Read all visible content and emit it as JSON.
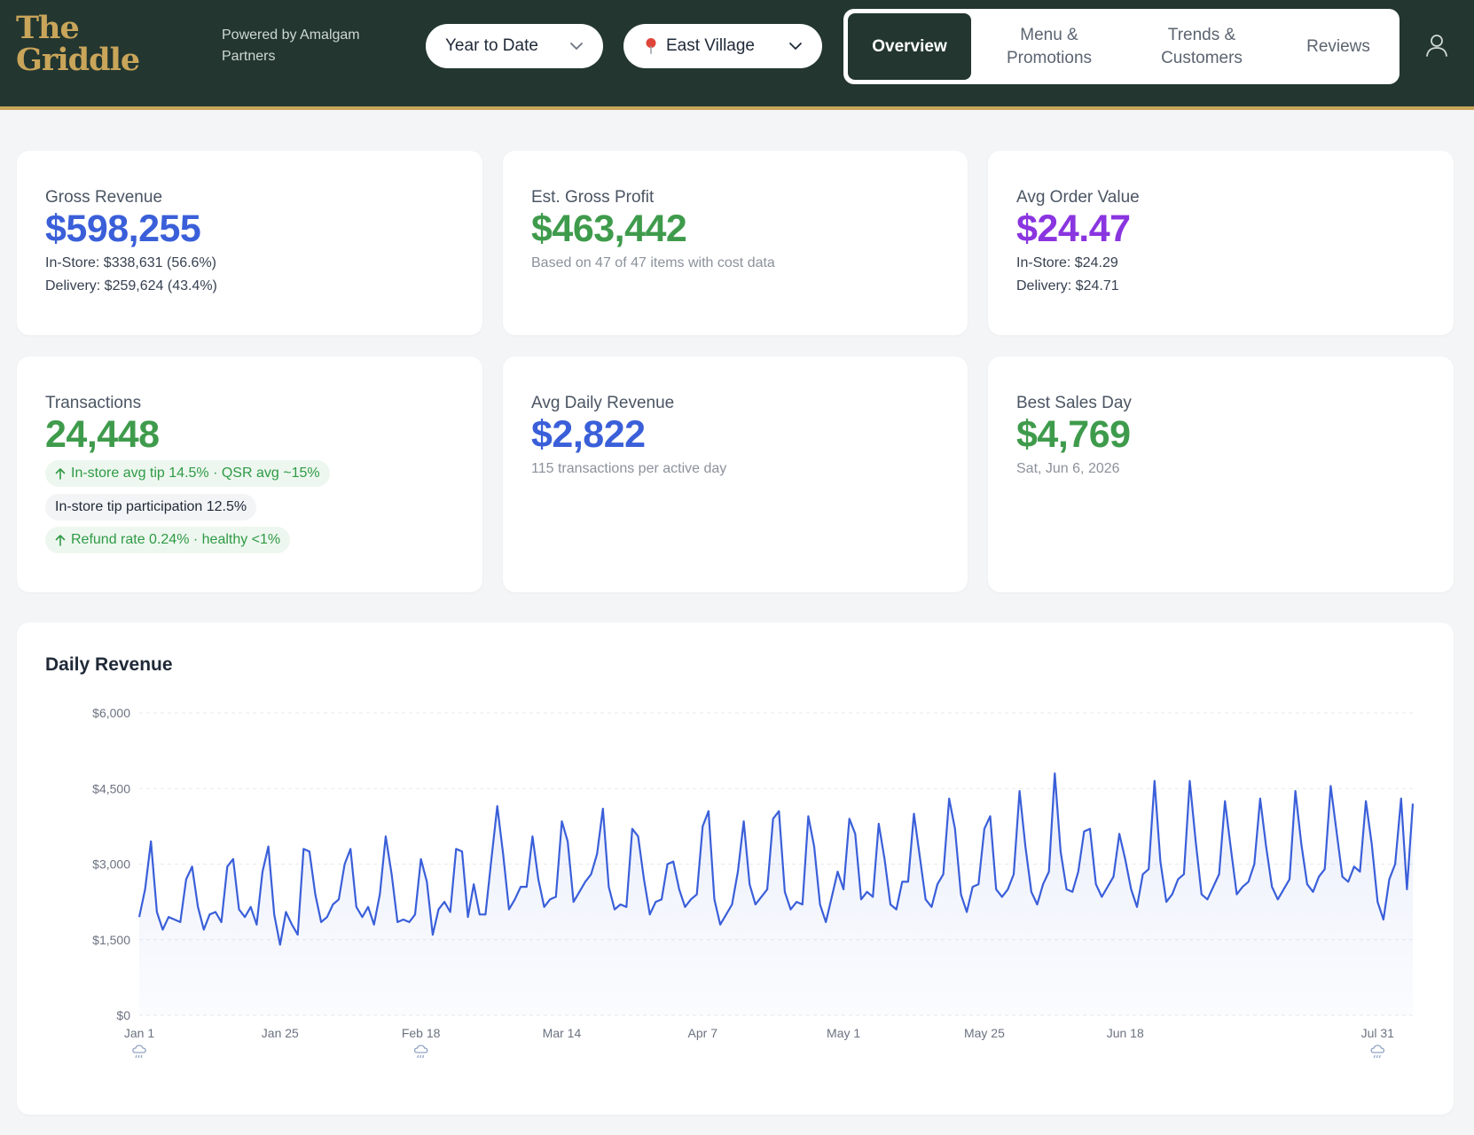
{
  "header": {
    "logo_line1": "The",
    "logo_line2": "Griddle",
    "powered_by": "Powered by Amalgam Partners",
    "period_select": {
      "value": "Year to Date",
      "icon": "chevron-down-icon"
    },
    "location_select": {
      "value": "East Village",
      "icon": "map-pin-icon"
    },
    "tabs": [
      {
        "label": "Overview",
        "active": true
      },
      {
        "label": "Menu & Promotions",
        "active": false
      },
      {
        "label": "Trends & Customers",
        "active": false
      },
      {
        "label": "Reviews",
        "active": false
      }
    ],
    "user_icon": "user-icon"
  },
  "cards": {
    "gross_revenue": {
      "label": "Gross Revenue",
      "value": "$598,255",
      "in_store": "In-Store: $338,631 (56.6%)",
      "delivery": "Delivery: $259,624 (43.4%)"
    },
    "gross_profit": {
      "label": "Est. Gross Profit",
      "value": "$463,442",
      "note": "Based on 47 of 47 items with cost data"
    },
    "avg_order": {
      "label": "Avg Order Value",
      "value": "$24.47",
      "in_store": "In-Store: $24.29",
      "delivery": "Delivery: $24.71"
    },
    "transactions": {
      "label": "Transactions",
      "value": "24,448",
      "pill_tip": "In-store avg tip 14.5% · QSR avg ~15%",
      "pill_participation": "In-store tip participation 12.5%",
      "pill_refund": "Refund rate 0.24% · healthy <1%"
    },
    "avg_daily": {
      "label": "Avg Daily Revenue",
      "value": "$2,822",
      "note": "115 transactions per active day"
    },
    "best_day": {
      "label": "Best Sales Day",
      "value": "$4,769",
      "note": "Sat, Jun 6, 2026"
    }
  },
  "colors": {
    "header_bg": "#233630",
    "accent_gold": "#c9a55a",
    "blue": "#3a5fd9",
    "green": "#3f9b4c",
    "purple": "#8a35e0",
    "line": "#3a5fd9"
  },
  "chart_data": {
    "type": "area",
    "title": "Daily Revenue",
    "ylim": [
      0,
      6000
    ],
    "yticks": [
      "$0",
      "$1,500",
      "$3,000",
      "$4,500",
      "$6,000"
    ],
    "xticks": [
      {
        "label": "Jan 1",
        "day": 0,
        "weather_icon": "snow-cloud-icon"
      },
      {
        "label": "Jan 25",
        "day": 24
      },
      {
        "label": "Feb 18",
        "day": 48,
        "weather_icon": "snow-cloud-icon"
      },
      {
        "label": "Mar 14",
        "day": 72
      },
      {
        "label": "Apr 7",
        "day": 96
      },
      {
        "label": "May 1",
        "day": 120
      },
      {
        "label": "May 25",
        "day": 144
      },
      {
        "label": "Jun 18",
        "day": 168
      },
      {
        "label": "Jul 31",
        "day": 211,
        "weather_icon": "snow-cloud-icon"
      }
    ],
    "grid": true,
    "series": [
      {
        "values": [
          1950,
          2500,
          3450,
          2050,
          1700,
          1950,
          1900,
          1850,
          2700,
          2950,
          2150,
          1700,
          2000,
          2050,
          1850,
          2950,
          3100,
          2100,
          1950,
          2150,
          1800,
          2850,
          3350,
          2000,
          1400,
          2050,
          1800,
          1600,
          3300,
          3250,
          2400,
          1850,
          1950,
          2200,
          2300,
          3000,
          3300,
          2150,
          1950,
          2150,
          1800,
          2400,
          3550,
          2800,
          1850,
          1900,
          1850,
          2000,
          3100,
          2650,
          1600,
          2100,
          2250,
          2050,
          3300,
          3250,
          1950,
          2600,
          2000,
          2000,
          3100,
          4150,
          3200,
          2100,
          2300,
          2550,
          2550,
          3550,
          2700,
          2150,
          2300,
          2350,
          3850,
          3450,
          2250,
          2450,
          2650,
          2800,
          3200,
          4100,
          2550,
          2100,
          2200,
          2150,
          3700,
          3550,
          2700,
          2000,
          2250,
          2300,
          3000,
          3050,
          2500,
          2150,
          2300,
          2400,
          3750,
          4050,
          2300,
          1800,
          2000,
          2200,
          2850,
          3850,
          2600,
          2200,
          2350,
          2500,
          3900,
          4050,
          2450,
          2100,
          2250,
          2200,
          3950,
          3350,
          2200,
          1850,
          2350,
          2850,
          2500,
          3900,
          3600,
          2300,
          2450,
          2350,
          3800,
          3100,
          2200,
          2100,
          2650,
          2650,
          4000,
          3150,
          2300,
          2150,
          2600,
          2800,
          4300,
          3700,
          2400,
          2050,
          2550,
          2600,
          3700,
          3950,
          2500,
          2350,
          2500,
          2800,
          4450,
          3350,
          2450,
          2200,
          2600,
          2850,
          4800,
          3250,
          2500,
          2450,
          2850,
          3650,
          3700,
          2600,
          2350,
          2550,
          2750,
          3600,
          3100,
          2500,
          2150,
          2800,
          2900,
          4650,
          3050,
          2250,
          2400,
          2700,
          2800,
          4650,
          3450,
          2400,
          2300,
          2550,
          2800,
          4250,
          3300,
          2400,
          2550,
          2650,
          3000,
          4300,
          3350,
          2550,
          2300,
          2500,
          2700,
          4450,
          3400,
          2600,
          2450,
          2750,
          2900,
          4550,
          3650,
          2750,
          2650,
          2950,
          2850,
          4250,
          3400,
          2250,
          1900,
          2700,
          3000,
          4300,
          2500,
          4200
        ]
      }
    ]
  }
}
